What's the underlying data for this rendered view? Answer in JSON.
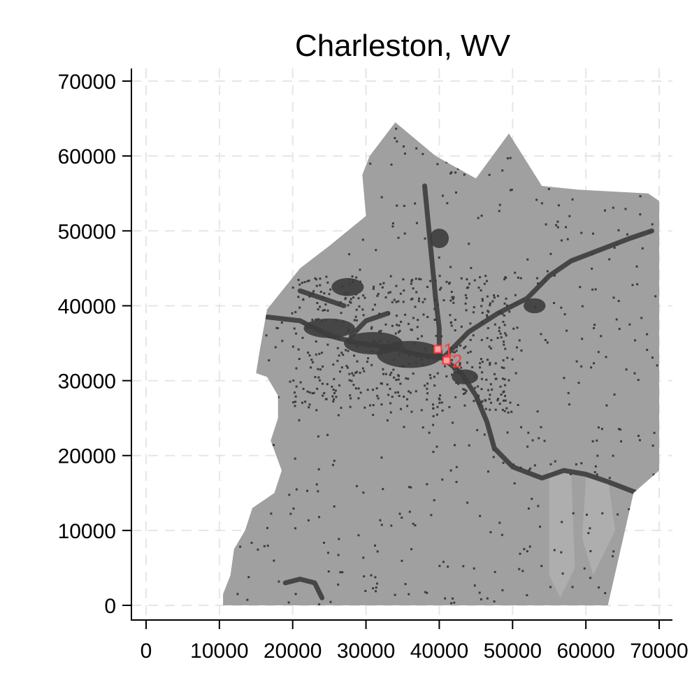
{
  "chart_data": {
    "type": "scatter",
    "title": "Charleston, WV",
    "xlabel": "",
    "ylabel": "",
    "xlim": [
      -2000,
      72000
    ],
    "ylim": [
      -2000,
      70000
    ],
    "x_ticks": [
      "0",
      "10000",
      "20000",
      "30000",
      "40000",
      "50000",
      "60000",
      "70000"
    ],
    "y_ticks": [
      "0",
      "10000",
      "20000",
      "30000",
      "40000",
      "50000",
      "60000",
      "70000"
    ],
    "grid": true,
    "grid_style": "dashed",
    "legend": "none",
    "background_color": "#ffffff",
    "region_fill_color": "#a0a0a0",
    "developed_color": "#3c3c3c",
    "grid_color": "#e6e6e6",
    "marker_color": "#ff3b3b",
    "region_outline": [
      [
        10500,
        0
      ],
      [
        63000,
        0
      ],
      [
        66500,
        15000
      ],
      [
        70000,
        18000
      ],
      [
        70000,
        54000
      ],
      [
        68500,
        55000
      ],
      [
        59000,
        55500
      ],
      [
        54000,
        56000
      ],
      [
        49500,
        63000
      ],
      [
        45000,
        57000
      ],
      [
        39500,
        60000
      ],
      [
        34000,
        64500
      ],
      [
        30500,
        60000
      ],
      [
        29500,
        57500
      ],
      [
        30000,
        52000
      ],
      [
        25000,
        48000
      ],
      [
        21000,
        45000
      ],
      [
        16500,
        39500
      ],
      [
        15500,
        34000
      ],
      [
        15000,
        31000
      ],
      [
        16500,
        30500
      ],
      [
        18000,
        28000
      ],
      [
        18000,
        25000
      ],
      [
        17000,
        22000
      ],
      [
        18500,
        18000
      ],
      [
        17500,
        15000
      ],
      [
        14500,
        13000
      ],
      [
        13500,
        10000
      ],
      [
        12000,
        7500
      ],
      [
        11500,
        4000
      ],
      [
        10500,
        1500
      ]
    ],
    "rivers": [
      [
        [
          16500,
          38500
        ],
        [
          21000,
          38000
        ],
        [
          25000,
          36000
        ],
        [
          29000,
          35000
        ],
        [
          33000,
          34500
        ],
        [
          37000,
          33500
        ],
        [
          40500,
          33000
        ],
        [
          43000,
          31000
        ],
        [
          45000,
          28000
        ],
        [
          46500,
          24500
        ],
        [
          47500,
          21000
        ],
        [
          50000,
          18500
        ],
        [
          54000,
          17000
        ],
        [
          57000,
          18000
        ],
        [
          60000,
          17500
        ],
        [
          63000,
          16500
        ],
        [
          67000,
          15000
        ]
      ],
      [
        [
          40500,
          33000
        ],
        [
          44000,
          36500
        ],
        [
          48000,
          39000
        ],
        [
          52000,
          41000
        ],
        [
          55000,
          44000
        ],
        [
          58000,
          46000
        ],
        [
          62000,
          47500
        ],
        [
          66000,
          49000
        ],
        [
          69000,
          50000
        ]
      ],
      [
        [
          40000,
          33500
        ],
        [
          40000,
          37000
        ],
        [
          39500,
          41000
        ],
        [
          39000,
          46000
        ],
        [
          38500,
          51000
        ],
        [
          38000,
          56000
        ]
      ],
      [
        [
          21000,
          42000
        ],
        [
          24000,
          41000
        ],
        [
          27000,
          40000
        ]
      ],
      [
        [
          19000,
          3000
        ],
        [
          21000,
          3500
        ],
        [
          23000,
          3000
        ],
        [
          24000,
          1000
        ]
      ],
      [
        [
          28000,
          36000
        ],
        [
          30000,
          38000
        ],
        [
          33000,
          39000
        ]
      ]
    ],
    "urban_areas": [
      {
        "x": 36000,
        "y": 33500,
        "rx": 4500,
        "ry": 1800
      },
      {
        "x": 31000,
        "y": 35000,
        "rx": 4000,
        "ry": 1500
      },
      {
        "x": 25000,
        "y": 37000,
        "rx": 3500,
        "ry": 1300
      },
      {
        "x": 27500,
        "y": 42500,
        "rx": 2200,
        "ry": 1200
      },
      {
        "x": 40000,
        "y": 49000,
        "rx": 1300,
        "ry": 1300
      },
      {
        "x": 53000,
        "y": 40000,
        "rx": 1500,
        "ry": 1000
      },
      {
        "x": 43500,
        "y": 30500,
        "rx": 1800,
        "ry": 1000
      }
    ],
    "light_areas": [
      [
        [
          55000,
          18000
        ],
        [
          58000,
          18000
        ],
        [
          58500,
          5000
        ],
        [
          56500,
          1000
        ],
        [
          55000,
          4000
        ]
      ],
      [
        [
          60000,
          17000
        ],
        [
          63000,
          17000
        ],
        [
          64000,
          10000
        ],
        [
          61000,
          4000
        ],
        [
          59500,
          9000
        ]
      ]
    ],
    "markers": [
      {
        "label": "1",
        "x": 39800,
        "y": 34200
      },
      {
        "label": "2",
        "x": 41000,
        "y": 32700
      }
    ]
  }
}
